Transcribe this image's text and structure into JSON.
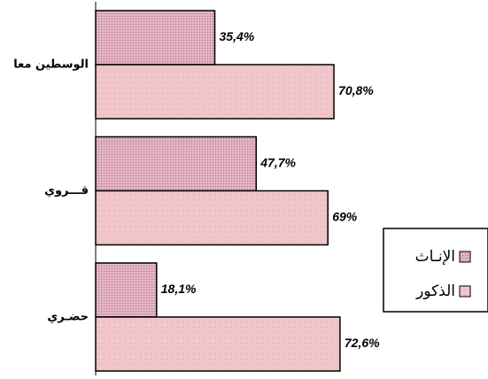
{
  "chart_data": {
    "type": "hbar",
    "categories": [
      "الوسطين معا",
      "قـــروي",
      "حضـري"
    ],
    "series": [
      {
        "name": "الإنـاث",
        "color": "#e4b2c4",
        "values": [
          35.4,
          47.7,
          18.1
        ],
        "value_labels": [
          "35,4%",
          "47,7%",
          "18,1%"
        ]
      },
      {
        "name": "الذكور",
        "color": "#f0c6ca",
        "values": [
          70.8,
          69,
          72.6
        ],
        "value_labels": [
          "70,8%",
          "69%",
          "72,6%"
        ]
      }
    ],
    "legend": "right"
  }
}
